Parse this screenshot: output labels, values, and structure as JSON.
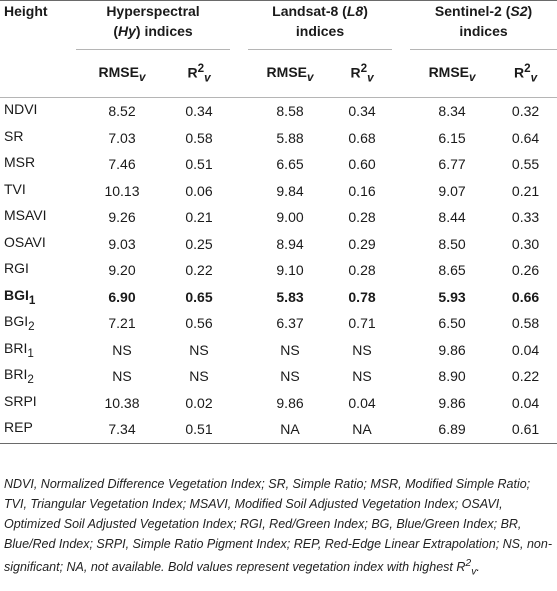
{
  "header": {
    "height": "Height",
    "hy_1": "Hyperspectral",
    "hy_2_open": "(",
    "hy_2_abbr": "Hy",
    "hy_2_close": ") indices",
    "l8_1_pre": "Landsat-8 (",
    "l8_1_abbr": "L8",
    "l8_1_close": ")",
    "l8_2": "indices",
    "s2_1_pre": "Sentinel-2 (",
    "s2_1_abbr": "S2",
    "s2_1_close": ")",
    "s2_2": "indices",
    "rmse": "RMSE",
    "r2": "R",
    "sub_v": "v",
    "sup_2": "2"
  },
  "rows": [
    {
      "name": "NDVI",
      "sub": "",
      "vals": [
        "8.52",
        "0.34",
        "8.58",
        "0.34",
        "8.34",
        "0.32"
      ],
      "bold": false
    },
    {
      "name": "SR",
      "sub": "",
      "vals": [
        "7.03",
        "0.58",
        "5.88",
        "0.68",
        "6.15",
        "0.64"
      ],
      "bold": false
    },
    {
      "name": "MSR",
      "sub": "",
      "vals": [
        "7.46",
        "0.51",
        "6.65",
        "0.60",
        "6.77",
        "0.55"
      ],
      "bold": false
    },
    {
      "name": "TVI",
      "sub": "",
      "vals": [
        "10.13",
        "0.06",
        "9.84",
        "0.16",
        "9.07",
        "0.21"
      ],
      "bold": false
    },
    {
      "name": "MSAVI",
      "sub": "",
      "vals": [
        "9.26",
        "0.21",
        "9.00",
        "0.28",
        "8.44",
        "0.33"
      ],
      "bold": false
    },
    {
      "name": "OSAVI",
      "sub": "",
      "vals": [
        "9.03",
        "0.25",
        "8.94",
        "0.29",
        "8.50",
        "0.30"
      ],
      "bold": false
    },
    {
      "name": "RGI",
      "sub": "",
      "vals": [
        "9.20",
        "0.22",
        "9.10",
        "0.28",
        "8.65",
        "0.26"
      ],
      "bold": false
    },
    {
      "name": "BGI",
      "sub": "1",
      "vals": [
        "6.90",
        "0.65",
        "5.83",
        "0.78",
        "5.93",
        "0.66"
      ],
      "bold": true
    },
    {
      "name": "BGI",
      "sub": "2",
      "vals": [
        "7.21",
        "0.56",
        "6.37",
        "0.71",
        "6.50",
        "0.58"
      ],
      "bold": false
    },
    {
      "name": "BRI",
      "sub": "1",
      "vals": [
        "NS",
        "NS",
        "NS",
        "NS",
        "9.86",
        "0.04"
      ],
      "bold": false
    },
    {
      "name": "BRI",
      "sub": "2",
      "vals": [
        "NS",
        "NS",
        "NS",
        "NS",
        "8.90",
        "0.22"
      ],
      "bold": false
    },
    {
      "name": "SRPI",
      "sub": "",
      "vals": [
        "10.38",
        "0.02",
        "9.86",
        "0.04",
        "9.86",
        "0.04"
      ],
      "bold": false
    },
    {
      "name": "REP",
      "sub": "",
      "vals": [
        "7.34",
        "0.51",
        "NA",
        "NA",
        "6.89",
        "0.61"
      ],
      "bold": false
    }
  ],
  "note": {
    "text": "NDVI, Normalized Difference Vegetation Index; SR, Simple Ratio; MSR, Modified Simple Ratio; TVI, Triangular Vegetation Index; MSAVI, Modified Soil Adjusted Vegetation Index; OSAVI, Optimized Soil Adjusted Vegetation Index; RGI, Red/Green Index; BG, Blue/Green Index; BR, Blue/Red Index; SRPI, Simple Ratio Pigment Index; REP, Red-Edge Linear Extrapolation; NS, non-significant; NA, not available. Bold values represent vegetation index with highest R",
    "sup": "2",
    "sub": "v",
    "end": "."
  }
}
